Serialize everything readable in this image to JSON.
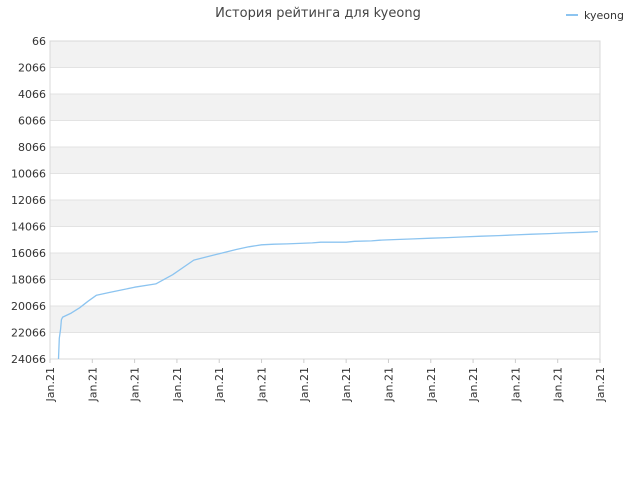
{
  "chart_data": {
    "type": "line",
    "title": "История рейтинга для kyeong",
    "xlabel": "",
    "ylabel": "",
    "y_inverted": true,
    "ylim": [
      66,
      24066
    ],
    "y_ticks": [
      66,
      2066,
      4066,
      6066,
      8066,
      10066,
      12066,
      14066,
      16066,
      18066,
      20066,
      22066,
      24066
    ],
    "x_ticks": [
      "Jan.21",
      "Jan.21",
      "Jan.21",
      "Jan.21",
      "Jan.21",
      "Jan.21",
      "Jan.21",
      "Jan.21",
      "Jan.21",
      "Jan.21",
      "Jan.21",
      "Jan.21",
      "Jan.21",
      "Jan.21"
    ],
    "x_range": [
      0,
      13
    ],
    "grid": true,
    "legend_position": "top-right",
    "colors": {
      "line": "#8cc4f0",
      "band": "#f2f2f2",
      "grid": "#e3e3e3"
    },
    "series": [
      {
        "name": "kyeong",
        "x": [
          0.2,
          0.22,
          0.25,
          0.27,
          0.3,
          0.5,
          0.7,
          0.9,
          1.1,
          1.4,
          1.7,
          2.0,
          2.5,
          2.9,
          3.4,
          3.9,
          4.4,
          4.7,
          5.0,
          5.3,
          5.6,
          6.2,
          6.4,
          7.0,
          7.2,
          7.6,
          7.8,
          8.2,
          8.6,
          9.0,
          9.4,
          9.8,
          10.2,
          10.6,
          11.0,
          11.4,
          11.8,
          12.2,
          12.6,
          12.95
        ],
        "values": [
          24066,
          22500,
          21800,
          21100,
          20900,
          20600,
          20200,
          19700,
          19250,
          19050,
          18850,
          18650,
          18400,
          17700,
          16600,
          16200,
          15800,
          15600,
          15450,
          15400,
          15380,
          15300,
          15250,
          15250,
          15180,
          15150,
          15100,
          15050,
          15000,
          14950,
          14900,
          14850,
          14800,
          14750,
          14700,
          14650,
          14600,
          14550,
          14500,
          14450
        ]
      }
    ]
  }
}
